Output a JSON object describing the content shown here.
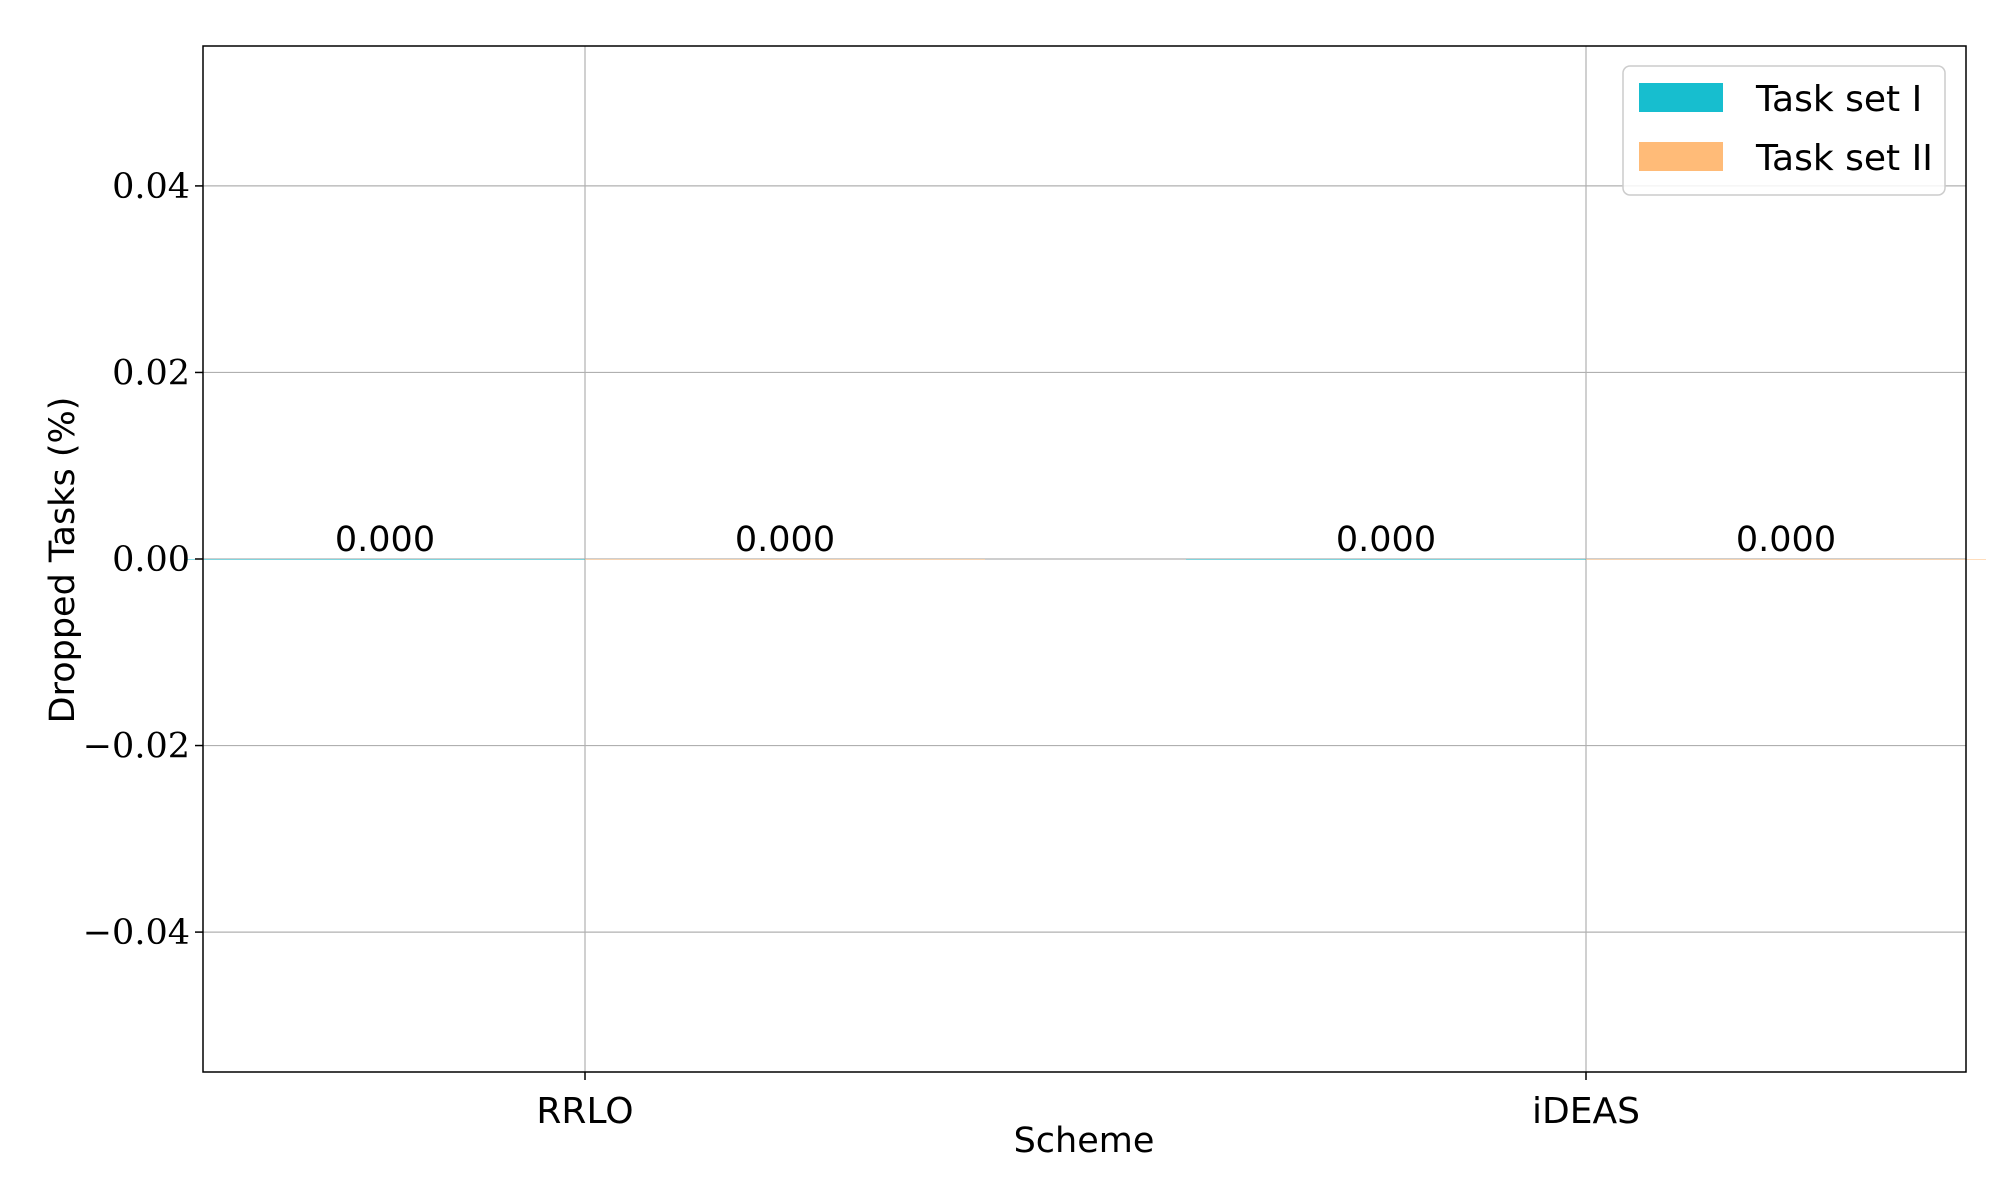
{
  "chart_data": {
    "type": "bar",
    "categories": [
      "RRLO",
      "iDEAS"
    ],
    "series": [
      {
        "name": "Task set I",
        "values": [
          0.0,
          0.0
        ],
        "color": "#17becf"
      },
      {
        "name": "Task set II",
        "values": [
          0.0,
          0.0
        ],
        "color": "#ffbb78"
      }
    ],
    "data_labels": [
      [
        "0.000",
        "0.000"
      ],
      [
        "0.000",
        "0.000"
      ]
    ],
    "xlabel": "Scheme",
    "ylabel": "Dropped Tasks (%)",
    "ylim": [
      -0.055,
      0.055
    ],
    "yticks": [
      -0.04,
      -0.02,
      0.0,
      0.02,
      0.04
    ],
    "ytick_labels": [
      "−0.04",
      "−0.02",
      "0.00",
      "0.02",
      "0.04"
    ],
    "grid": true,
    "legend_position": "top-right"
  }
}
